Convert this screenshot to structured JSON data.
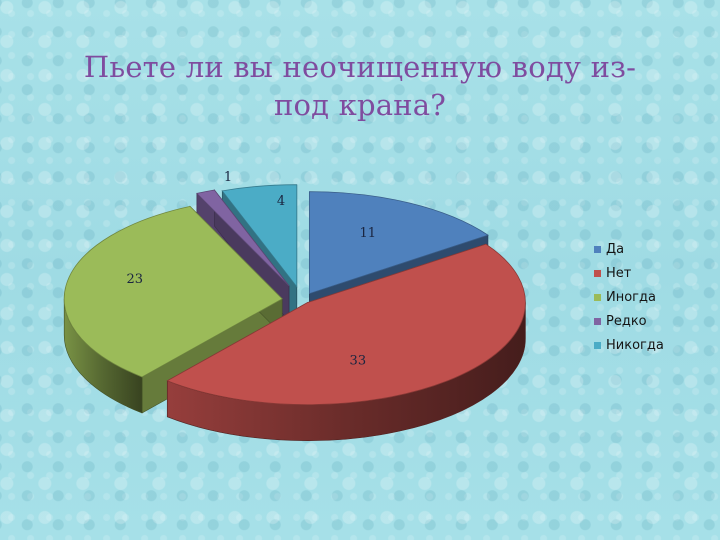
{
  "slide": {
    "title": "Пьете ли вы неочищенную воду из-под крана?"
  },
  "chart_data": {
    "type": "pie",
    "title": "Пьете ли вы неочищенную воду из-под крана?",
    "categories": [
      "Да",
      "Нет",
      "Иногда",
      "Редко",
      "Никогда"
    ],
    "values": [
      11,
      33,
      23,
      1,
      4
    ],
    "colors": [
      "#4f81bd",
      "#c0504d",
      "#9bbb59",
      "#8064a2",
      "#4bacc6"
    ],
    "legend_position": "right",
    "style": "3d-exploded"
  }
}
